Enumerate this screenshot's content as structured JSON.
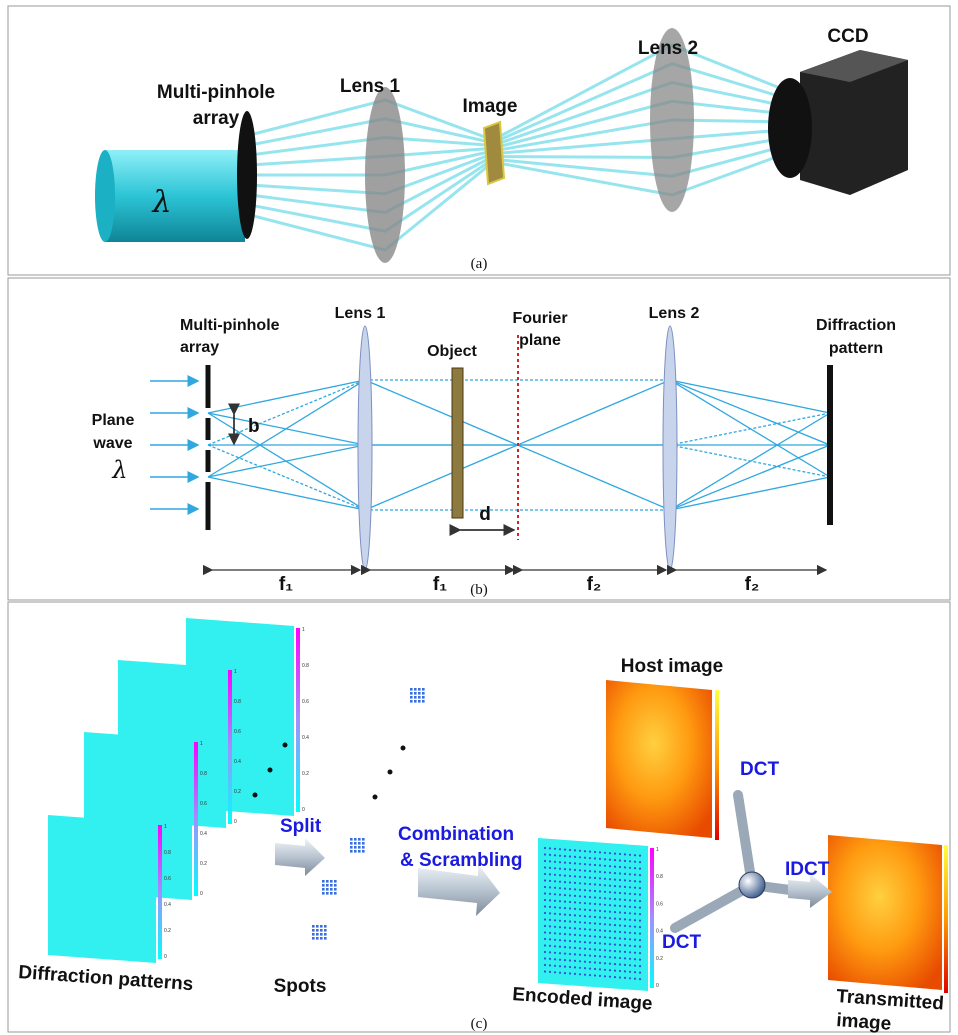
{
  "panel_a": {
    "caption": "(a)",
    "multi_pinhole_array": [
      "Multi-pinhole",
      "array"
    ],
    "lens_1": "Lens 1",
    "image": "Image",
    "lens_2": "Lens 2",
    "ccd": "CCD",
    "wavelength": "λ"
  },
  "panel_b": {
    "caption": "(b)",
    "multi_pinhole_array": [
      "Multi-pinhole",
      "array"
    ],
    "lens_1": "Lens 1",
    "object": "Object",
    "fourier_plane": [
      "Fourier",
      "plane"
    ],
    "lens_2": "Lens 2",
    "diffraction_pattern": [
      "Diffraction",
      "pattern"
    ],
    "plane_wave": [
      "Plane",
      "wave"
    ],
    "wavelength": "λ",
    "pitch": "b",
    "distance": "d",
    "focal_lengths": [
      "f₁",
      "f₁",
      "f₂",
      "f₂"
    ]
  },
  "panel_c": {
    "caption": "(c)",
    "diffraction_patterns": "Diffraction patterns",
    "split": "Split",
    "spots": "Spots",
    "combination": [
      "Combination",
      "& Scrambling"
    ],
    "host_image": "Host image",
    "dct_top": "DCT",
    "idct": "IDCT",
    "encoded_image": "Encoded image",
    "dct_bottom": "DCT",
    "transmitted_image": [
      "Transmitted",
      "image"
    ],
    "colorbar_ticks": [
      1,
      0.8,
      0.6,
      0.4,
      0.2,
      0
    ]
  }
}
